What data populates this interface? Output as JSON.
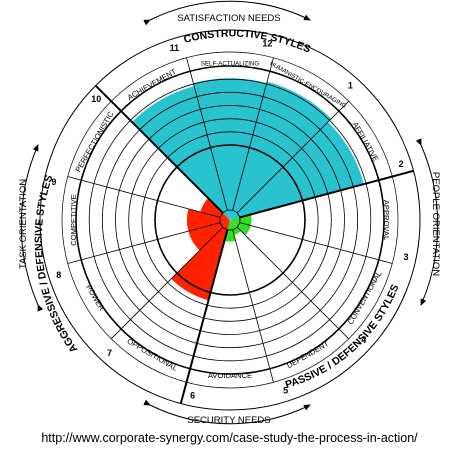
{
  "title": "",
  "outer_labels": {
    "top": "SATISFACTION NEEDS",
    "bottom": "SECURITY NEEDS",
    "left": "TASK ORIENTATION",
    "right": "PEOPLE ORIENTATION"
  },
  "cluster_labels": {
    "constructive": "CONSTRUCTIVE STYLES",
    "passive": "PASSIVE / DEFENSIVE STYLES",
    "aggressive": "AGGRESSIVE / DEFENSIVE STYLES"
  },
  "sectors": [
    {
      "number": "1",
      "name": "HUMANISTIC-ENCOURAGING"
    },
    {
      "number": "2",
      "name": "AFFILIATIVE"
    },
    {
      "number": "3",
      "name": "APPROVAL"
    },
    {
      "number": "4",
      "name": "CONVENTIONAL"
    },
    {
      "number": "5",
      "name": "DEPENDENT"
    },
    {
      "number": "6",
      "name": "AVOIDANCE"
    },
    {
      "number": "7",
      "name": "OPPOSITIONAL"
    },
    {
      "number": "8",
      "name": "POWER"
    },
    {
      "number": "9",
      "name": "COMPETITIVE"
    },
    {
      "number": "10",
      "name": "PERFECTIONISTIC"
    },
    {
      "number": "11",
      "name": "ACHIEVEMENT"
    },
    {
      "number": "12",
      "name": "SELF-ACTUALIZING"
    }
  ],
  "chart_data": {
    "type": "circumplex",
    "ring_count": 7,
    "sector_order": [
      "12",
      "1",
      "2",
      "3",
      "4",
      "5",
      "6",
      "7",
      "8",
      "9",
      "10",
      "11"
    ],
    "shaded_extent": {
      "1": 0.93,
      "2": 0.9,
      "3": 0.14,
      "4": 0.14,
      "5": 0.1,
      "6": 0.14,
      "7": 0.54,
      "8": 0.28,
      "9": 0.28,
      "10": 0.2,
      "11": 0.9,
      "12": 0.92
    },
    "colors": {
      "constructive": "#29c3cf",
      "passive": "#33dd22",
      "aggressive": "#ff2200"
    }
  },
  "source_url": "http://www.corporate-synergy.com/case-study-the-process-in-action/"
}
